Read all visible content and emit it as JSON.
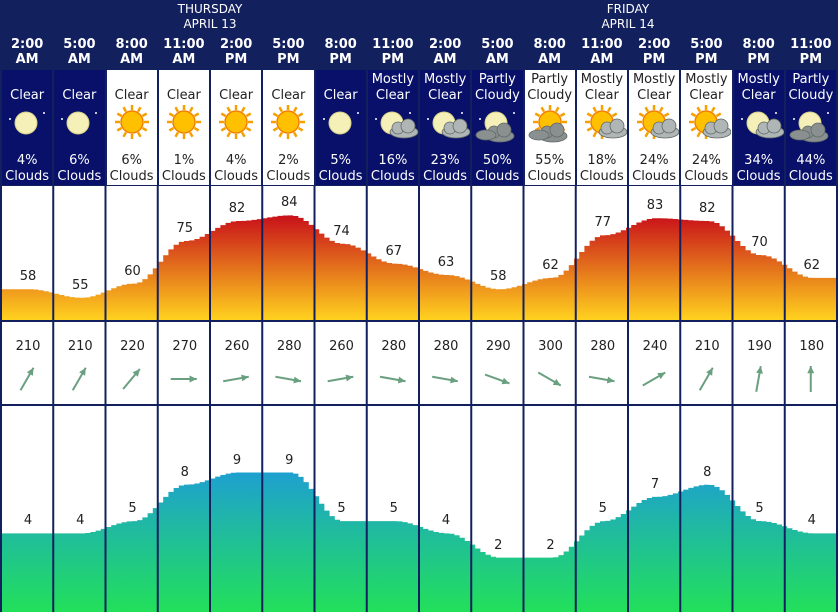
{
  "days": [
    {
      "name": "THURSDAY",
      "date": "APRIL 13"
    },
    {
      "name": "FRIDAY",
      "date": "APRIL 14"
    }
  ],
  "hours": [
    {
      "time": "2:00",
      "ampm": "AM",
      "cond1": "",
      "cond2": "Clear",
      "clouds": "4%",
      "cloud_label": "Clouds",
      "icon": "moon-icon",
      "night": true,
      "temp": 58,
      "wind_dir": 210,
      "wind_speed": 4
    },
    {
      "time": "5:00",
      "ampm": "AM",
      "cond1": "",
      "cond2": "Clear",
      "clouds": "6%",
      "cloud_label": "Clouds",
      "icon": "moon-icon",
      "night": true,
      "temp": 55,
      "wind_dir": 210,
      "wind_speed": 4
    },
    {
      "time": "8:00",
      "ampm": "AM",
      "cond1": "",
      "cond2": "Clear",
      "clouds": "6%",
      "cloud_label": "Clouds",
      "icon": "sun-icon",
      "night": false,
      "temp": 60,
      "wind_dir": 220,
      "wind_speed": 5
    },
    {
      "time": "11:00",
      "ampm": "AM",
      "cond1": "",
      "cond2": "Clear",
      "clouds": "1%",
      "cloud_label": "Clouds",
      "icon": "sun-icon",
      "night": false,
      "temp": 75,
      "wind_dir": 270,
      "wind_speed": 8
    },
    {
      "time": "2:00",
      "ampm": "PM",
      "cond1": "",
      "cond2": "Clear",
      "clouds": "4%",
      "cloud_label": "Clouds",
      "icon": "sun-icon",
      "night": false,
      "temp": 82,
      "wind_dir": 260,
      "wind_speed": 9
    },
    {
      "time": "5:00",
      "ampm": "PM",
      "cond1": "",
      "cond2": "Clear",
      "clouds": "2%",
      "cloud_label": "Clouds",
      "icon": "sun-icon",
      "night": false,
      "temp": 84,
      "wind_dir": 280,
      "wind_speed": 9
    },
    {
      "time": "8:00",
      "ampm": "PM",
      "cond1": "",
      "cond2": "Clear",
      "clouds": "5%",
      "cloud_label": "Clouds",
      "icon": "moon-icon",
      "night": true,
      "temp": 74,
      "wind_dir": 260,
      "wind_speed": 5
    },
    {
      "time": "11:00",
      "ampm": "PM",
      "cond1": "Mostly",
      "cond2": "Clear",
      "clouds": "16%",
      "cloud_label": "Clouds",
      "icon": "moon-cloud-icon",
      "night": true,
      "temp": 67,
      "wind_dir": 280,
      "wind_speed": 5
    },
    {
      "time": "2:00",
      "ampm": "AM",
      "cond1": "Mostly",
      "cond2": "Clear",
      "clouds": "23%",
      "cloud_label": "Clouds",
      "icon": "moon-cloud-icon",
      "night": true,
      "temp": 63,
      "wind_dir": 280,
      "wind_speed": 4
    },
    {
      "time": "5:00",
      "ampm": "AM",
      "cond1": "Partly",
      "cond2": "Cloudy",
      "clouds": "50%",
      "cloud_label": "Clouds",
      "icon": "moon-cloudy-icon",
      "night": true,
      "temp": 58,
      "wind_dir": 290,
      "wind_speed": 2
    },
    {
      "time": "8:00",
      "ampm": "AM",
      "cond1": "Partly",
      "cond2": "Cloudy",
      "clouds": "55%",
      "cloud_label": "Clouds",
      "icon": "sun-cloudy-icon",
      "night": false,
      "temp": 62,
      "wind_dir": 300,
      "wind_speed": 2
    },
    {
      "time": "11:00",
      "ampm": "AM",
      "cond1": "Mostly",
      "cond2": "Clear",
      "clouds": "18%",
      "cloud_label": "Clouds",
      "icon": "sun-cloud-icon",
      "night": false,
      "temp": 77,
      "wind_dir": 280,
      "wind_speed": 5
    },
    {
      "time": "2:00",
      "ampm": "PM",
      "cond1": "Mostly",
      "cond2": "Clear",
      "clouds": "24%",
      "cloud_label": "Clouds",
      "icon": "sun-cloud-icon",
      "night": false,
      "temp": 83,
      "wind_dir": 240,
      "wind_speed": 7
    },
    {
      "time": "5:00",
      "ampm": "PM",
      "cond1": "Mostly",
      "cond2": "Clear",
      "clouds": "24%",
      "cloud_label": "Clouds",
      "icon": "sun-cloud-icon",
      "night": false,
      "temp": 82,
      "wind_dir": 210,
      "wind_speed": 8
    },
    {
      "time": "8:00",
      "ampm": "PM",
      "cond1": "Mostly",
      "cond2": "Clear",
      "clouds": "34%",
      "cloud_label": "Clouds",
      "icon": "moon-cloud-icon",
      "night": true,
      "temp": 70,
      "wind_dir": 190,
      "wind_speed": 5
    },
    {
      "time": "11:00",
      "ampm": "PM",
      "cond1": "Partly",
      "cond2": "Cloudy",
      "clouds": "44%",
      "cloud_label": "Clouds",
      "icon": "moon-cloudy-icon",
      "night": true,
      "temp": 62,
      "wind_dir": 180,
      "wind_speed": 4
    }
  ],
  "chart_data": [
    {
      "type": "area",
      "x": [
        "2:00 AM",
        "5:00 AM",
        "8:00 AM",
        "11:00 AM",
        "2:00 PM",
        "5:00 PM",
        "8:00 PM",
        "11:00 PM",
        "2:00 AM",
        "5:00 AM",
        "8:00 AM",
        "11:00 AM",
        "2:00 PM",
        "5:00 PM",
        "8:00 PM",
        "11:00 PM"
      ],
      "values": [
        58,
        55,
        60,
        75,
        82,
        84,
        74,
        67,
        63,
        58,
        62,
        77,
        83,
        82,
        70,
        62
      ],
      "title": "",
      "xlabel": "",
      "ylabel": ""
    },
    {
      "type": "area",
      "x": [
        "2:00 AM",
        "5:00 AM",
        "8:00 AM",
        "11:00 AM",
        "2:00 PM",
        "5:00 PM",
        "8:00 PM",
        "11:00 PM",
        "2:00 AM",
        "5:00 AM",
        "8:00 AM",
        "11:00 AM",
        "2:00 PM",
        "5:00 PM",
        "8:00 PM",
        "11:00 PM"
      ],
      "values": [
        4,
        4,
        5,
        8,
        9,
        9,
        5,
        5,
        4,
        2,
        2,
        5,
        7,
        8,
        5,
        4
      ],
      "title": "",
      "xlabel": "",
      "ylabel": ""
    }
  ],
  "colors": {
    "header_bg": "#13205e",
    "night_bg": "#08106a",
    "temp_top": "#c8101a",
    "temp_bottom": "#ffd21e",
    "wind_top": "#1ea0d0",
    "wind_bottom": "#22e05a",
    "arrow": "#6aa080"
  }
}
